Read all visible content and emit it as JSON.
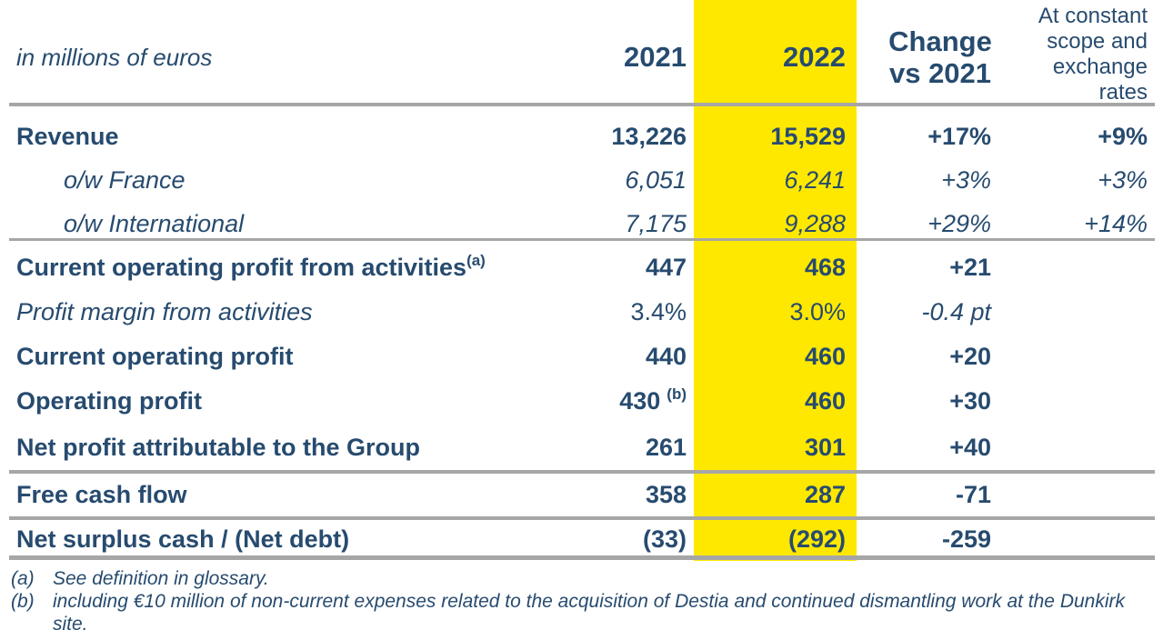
{
  "meta": {
    "unit_label": "in millions of euros"
  },
  "header": {
    "col_2021": "2021",
    "col_2022": "2022",
    "col_change": [
      "Change",
      "vs 2021"
    ],
    "col_constant": [
      "At constant",
      "scope and",
      "exchange",
      "rates"
    ]
  },
  "rows": [
    {
      "label": "Revenue",
      "indent": false,
      "label_sup": "",
      "v2021": "13,226",
      "v2021_sup": "",
      "v2022": "15,529",
      "change": "+17%",
      "constant": "+9%",
      "styles": {
        "label": "bold",
        "values": "bold",
        "change": "bold",
        "constant": "bold"
      }
    },
    {
      "label": "o/w France",
      "indent": true,
      "label_sup": "",
      "v2021": "6,051",
      "v2021_sup": "",
      "v2022": "6,241",
      "change": "+3%",
      "constant": "+3%",
      "styles": {
        "label": "italic",
        "values": "italic",
        "change": "italic",
        "constant": "italic"
      }
    },
    {
      "label": "o/w International",
      "indent": true,
      "label_sup": "",
      "v2021": "7,175",
      "v2021_sup": "",
      "v2022": "9,288",
      "change": "+29%",
      "constant": "+14%",
      "styles": {
        "label": "italic",
        "values": "italic",
        "change": "italic",
        "constant": "italic"
      }
    },
    {
      "label": "Current operating profit from activities",
      "indent": false,
      "label_sup": "(a)",
      "v2021": "447",
      "v2021_sup": "",
      "v2022": "468",
      "change": "+21",
      "constant": "",
      "styles": {
        "label": "bold",
        "values": "bold",
        "change": "bold",
        "constant": "bold"
      }
    },
    {
      "label": "Profit margin from activities",
      "indent": false,
      "label_sup": "",
      "v2021": "3.4%",
      "v2021_sup": "",
      "v2022": "3.0%",
      "change": "-0.4 pt",
      "constant": "",
      "styles": {
        "label": "italic",
        "values": "regular",
        "change": "italic",
        "constant": "regular"
      }
    },
    {
      "label": "Current operating profit",
      "indent": false,
      "label_sup": "",
      "v2021": "440",
      "v2021_sup": "",
      "v2022": "460",
      "change": "+20",
      "constant": "",
      "styles": {
        "label": "bold",
        "values": "bold",
        "change": "bold",
        "constant": "bold"
      }
    },
    {
      "label": "Operating profit",
      "indent": false,
      "label_sup": "",
      "v2021": "430",
      "v2021_sup": "(b)",
      "v2022": "460",
      "change": "+30",
      "constant": "",
      "styles": {
        "label": "bold",
        "values": "bold",
        "change": "bold",
        "constant": "bold"
      }
    },
    {
      "label": "Net profit attributable to the Group",
      "indent": false,
      "label_sup": "",
      "v2021": "261",
      "v2021_sup": "",
      "v2022": "301",
      "change": "+40",
      "constant": "",
      "styles": {
        "label": "bold",
        "values": "bold",
        "change": "bold",
        "constant": "bold"
      }
    },
    {
      "label": "Free cash flow",
      "indent": false,
      "label_sup": "",
      "v2021": "358",
      "v2021_sup": "",
      "v2022": "287",
      "change": "-71",
      "constant": "",
      "styles": {
        "label": "bold",
        "values": "bold",
        "change": "bold",
        "constant": "bold"
      }
    },
    {
      "label": "Net surplus cash / (Net debt)",
      "indent": false,
      "label_sup": "",
      "v2021": "(33)",
      "v2021_sup": "",
      "v2022": "(292)",
      "change": "-259",
      "constant": "",
      "styles": {
        "label": "bold",
        "values": "bold",
        "change": "bold",
        "constant": "bold"
      }
    }
  ],
  "footnotes": [
    {
      "marker": "(a)",
      "text": "See definition in glossary."
    },
    {
      "marker": "(b)",
      "text": "including €10 million of non-current expenses related to the acquisition of Destia and continued dismantling work at the Dunkirk site."
    }
  ],
  "colors": {
    "text_navy": "#274b6f",
    "highlight_yellow": "#ffe800",
    "divider_gray": "#a6a6a6"
  },
  "chart_data": {
    "type": "table",
    "title": "",
    "unit": "in millions of euros",
    "columns": [
      "2021",
      "2022",
      "Change vs 2021",
      "At constant scope and exchange rates"
    ],
    "records": [
      {
        "line": "Revenue",
        "2021": "13,226",
        "2022": "15,529",
        "change_vs_2021": "+17%",
        "constant_scope_fx": "+9%"
      },
      {
        "line": "o/w France",
        "2021": "6,051",
        "2022": "6,241",
        "change_vs_2021": "+3%",
        "constant_scope_fx": "+3%"
      },
      {
        "line": "o/w International",
        "2021": "7,175",
        "2022": "9,288",
        "change_vs_2021": "+29%",
        "constant_scope_fx": "+14%"
      },
      {
        "line": "Current operating profit from activities (a)",
        "2021": "447",
        "2022": "468",
        "change_vs_2021": "+21",
        "constant_scope_fx": ""
      },
      {
        "line": "Profit margin from activities",
        "2021": "3.4%",
        "2022": "3.0%",
        "change_vs_2021": "-0.4 pt",
        "constant_scope_fx": ""
      },
      {
        "line": "Current operating profit",
        "2021": "440",
        "2022": "460",
        "change_vs_2021": "+20",
        "constant_scope_fx": ""
      },
      {
        "line": "Operating profit",
        "2021": "430 (b)",
        "2022": "460",
        "change_vs_2021": "+30",
        "constant_scope_fx": ""
      },
      {
        "line": "Net profit attributable to the Group",
        "2021": "261",
        "2022": "301",
        "change_vs_2021": "+40",
        "constant_scope_fx": ""
      },
      {
        "line": "Free cash flow",
        "2021": "358",
        "2022": "287",
        "change_vs_2021": "-71",
        "constant_scope_fx": ""
      },
      {
        "line": "Net surplus cash / (Net debt)",
        "2021": "(33)",
        "2022": "(292)",
        "change_vs_2021": "-259",
        "constant_scope_fx": ""
      }
    ]
  }
}
